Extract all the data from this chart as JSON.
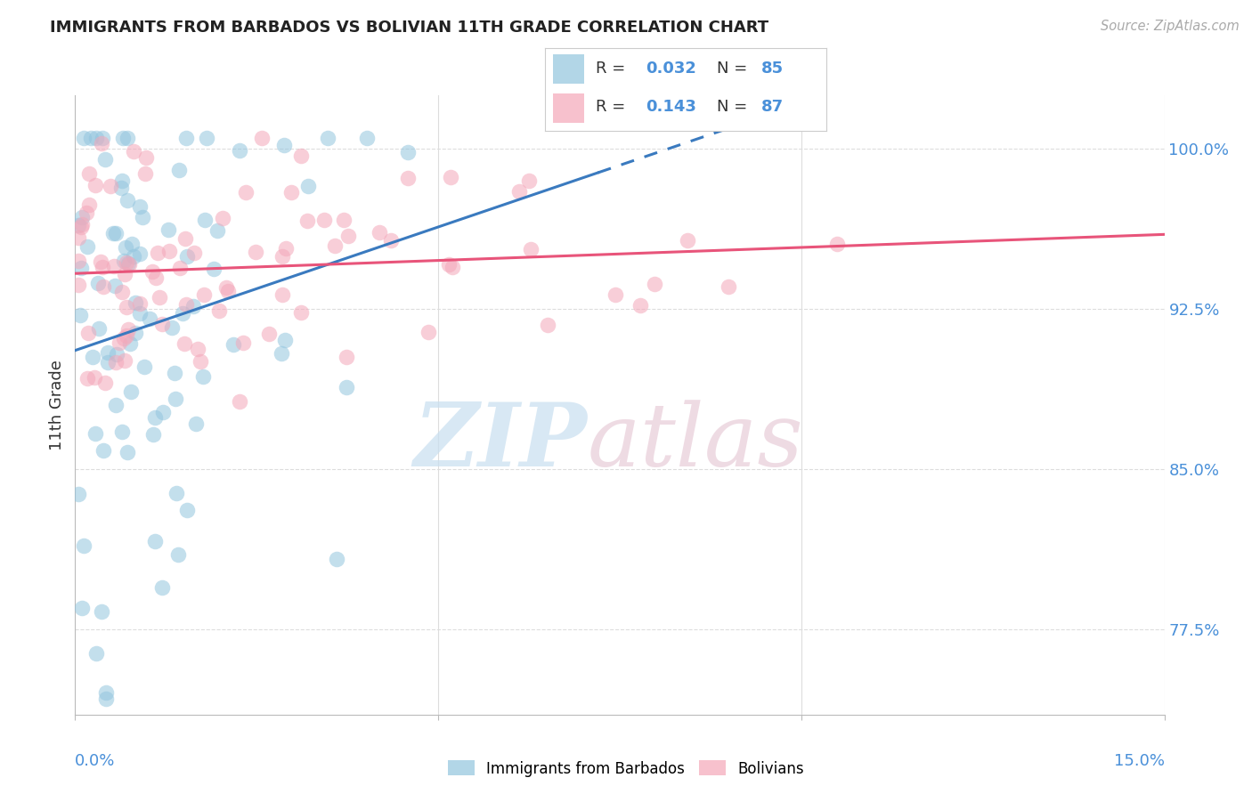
{
  "title": "IMMIGRANTS FROM BARBADOS VS BOLIVIAN 11TH GRADE CORRELATION CHART",
  "source": "Source: ZipAtlas.com",
  "ylabel": "11th Grade",
  "yaxis_labels": [
    "100.0%",
    "92.5%",
    "85.0%",
    "77.5%"
  ],
  "yaxis_values": [
    1.0,
    0.925,
    0.85,
    0.775
  ],
  "xaxis_range": [
    0.0,
    0.15
  ],
  "yaxis_range": [
    0.735,
    1.025
  ],
  "legend_r1": "0.032",
  "legend_n1": "85",
  "legend_r2": "0.143",
  "legend_n2": "87",
  "barbados_color": "#92c5de",
  "bolivian_color": "#f4a7b9",
  "barbados_line_color": "#3a7abf",
  "bolivian_line_color": "#e8547a",
  "title_color": "#222222",
  "source_color": "#aaaaaa",
  "right_label_color": "#4a90d9",
  "grid_color": "#dddddd",
  "watermark_zip_color": "#c8dff0",
  "watermark_atlas_color": "#e8ccd8"
}
